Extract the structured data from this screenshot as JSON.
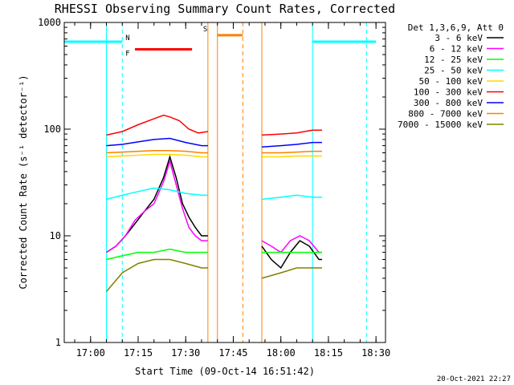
{
  "chart_data": {
    "type": "line",
    "title": "RHESSI Observing Summary Count Rates, Corrected",
    "xlabel": "Start Time (09-Oct-14 16:51:42)",
    "ylabel": "Corrected Count Rate (s⁻¹ detector⁻¹)",
    "y_scale": "log",
    "ylim": [
      1,
      1000
    ],
    "y_ticks": [
      1,
      10,
      100,
      1000
    ],
    "y_tick_labels": [
      "1",
      "10",
      "100",
      "1000"
    ],
    "xlim": [
      "16:51:42",
      "18:33:00"
    ],
    "x_ticks": [
      "17:00",
      "17:15",
      "17:30",
      "17:45",
      "18:00",
      "18:15",
      "18:30"
    ],
    "legend_title": "Det 1,3,6,9, Att 0",
    "legend_position": "right",
    "footer_date": "20-Oct-2021 22:27",
    "series": [
      {
        "name": "3 - 6 keV",
        "color": "#000000",
        "segments": [
          {
            "x": [
              "17:05",
              "17:08",
              "17:11",
              "17:14",
              "17:17",
              "17:20",
              "17:23",
              "17:25",
              "17:27",
              "17:29",
              "17:31",
              "17:33",
              "17:35",
              "17:36",
              "17:37"
            ],
            "y": [
              7,
              8,
              10,
              13,
              17,
              22,
              35,
              55,
              35,
              20,
              15,
              12,
              10,
              10,
              10
            ]
          },
          {
            "x": [
              "17:54",
              "17:57",
              "18:00",
              "18:03",
              "18:06",
              "18:09",
              "18:12",
              "18:13"
            ],
            "y": [
              8,
              6,
              5,
              7,
              9,
              8,
              6,
              6
            ]
          }
        ]
      },
      {
        "name": "6 - 12 keV",
        "color": "#ff00ff",
        "segments": [
          {
            "x": [
              "17:05",
              "17:08",
              "17:11",
              "17:14",
              "17:17",
              "17:20",
              "17:23",
              "17:25",
              "17:27",
              "17:29",
              "17:31",
              "17:33",
              "17:35",
              "17:36",
              "17:37"
            ],
            "y": [
              7,
              8,
              10,
              14,
              17,
              20,
              32,
              50,
              30,
              18,
              12,
              10,
              9,
              9,
              9
            ]
          },
          {
            "x": [
              "17:54",
              "17:57",
              "18:00",
              "18:03",
              "18:06",
              "18:09",
              "18:12",
              "18:13"
            ],
            "y": [
              9,
              8,
              7,
              9,
              10,
              9,
              7,
              7
            ]
          }
        ]
      },
      {
        "name": "12 - 25 keV",
        "color": "#00ff00",
        "segments": [
          {
            "x": [
              "17:05",
              "17:10",
              "17:15",
              "17:20",
              "17:25",
              "17:30",
              "17:35",
              "17:37"
            ],
            "y": [
              6,
              6.5,
              7,
              7,
              7.5,
              7,
              7,
              7
            ]
          },
          {
            "x": [
              "17:54",
              "18:00",
              "18:05",
              "18:10",
              "18:13"
            ],
            "y": [
              7,
              7,
              7,
              7,
              7
            ]
          }
        ]
      },
      {
        "name": "25 - 50 keV",
        "color": "#00ffff",
        "segments": [
          {
            "x": [
              "17:05",
              "17:10",
              "17:15",
              "17:20",
              "17:25",
              "17:30",
              "17:35",
              "17:37"
            ],
            "y": [
              22,
              24,
              26,
              28,
              27,
              25,
              24,
              24
            ]
          },
          {
            "x": [
              "17:54",
              "18:00",
              "18:05",
              "18:10",
              "18:13"
            ],
            "y": [
              22,
              23,
              24,
              23,
              23
            ]
          }
        ]
      },
      {
        "name": "50 - 100 keV",
        "color": "#ffd700",
        "segments": [
          {
            "x": [
              "17:05",
              "17:10",
              "17:15",
              "17:20",
              "17:25",
              "17:30",
              "17:35",
              "17:37"
            ],
            "y": [
              55,
              56,
              57,
              58,
              58,
              57,
              55,
              55
            ]
          },
          {
            "x": [
              "17:54",
              "18:00",
              "18:05",
              "18:10",
              "18:13"
            ],
            "y": [
              55,
              55,
              56,
              56,
              56
            ]
          }
        ]
      },
      {
        "name": "100 - 300 keV",
        "color": "#ff0000",
        "segments": [
          {
            "x": [
              "17:05",
              "17:10",
              "17:15",
              "17:20",
              "17:23",
              "17:25",
              "17:28",
              "17:31",
              "17:34",
              "17:37"
            ],
            "y": [
              88,
              95,
              110,
              125,
              135,
              130,
              120,
              100,
              92,
              95
            ]
          },
          {
            "x": [
              "17:54",
              "18:00",
              "18:05",
              "18:10",
              "18:13"
            ],
            "y": [
              88,
              90,
              92,
              98,
              98
            ]
          }
        ]
      },
      {
        "name": "300 - 800 keV",
        "color": "#0000ff",
        "segments": [
          {
            "x": [
              "17:05",
              "17:10",
              "17:15",
              "17:20",
              "17:25",
              "17:30",
              "17:35",
              "17:37"
            ],
            "y": [
              70,
              72,
              76,
              80,
              82,
              75,
              70,
              70
            ]
          },
          {
            "x": [
              "17:54",
              "18:00",
              "18:05",
              "18:10",
              "18:13"
            ],
            "y": [
              68,
              70,
              72,
              75,
              75
            ]
          }
        ]
      },
      {
        "name": "800 - 7000 keV",
        "color": "#ff8000",
        "segments": [
          {
            "x": [
              "17:05",
              "17:10",
              "17:15",
              "17:20",
              "17:25",
              "17:30",
              "17:35",
              "17:37"
            ],
            "y": [
              60,
              61,
              62,
              63,
              63,
              62,
              60,
              60
            ]
          },
          {
            "x": [
              "17:54",
              "18:00",
              "18:05",
              "18:10",
              "18:13"
            ],
            "y": [
              60,
              60,
              61,
              62,
              62
            ]
          }
        ]
      },
      {
        "name": "7000 - 15000 keV",
        "color": "#808000",
        "segments": [
          {
            "x": [
              "17:05",
              "17:10",
              "17:15",
              "17:20",
              "17:25",
              "17:30",
              "17:35",
              "17:37"
            ],
            "y": [
              3,
              4.5,
              5.5,
              6,
              6,
              5.5,
              5,
              5
            ]
          },
          {
            "x": [
              "17:54",
              "18:00",
              "18:05",
              "18:10",
              "18:13"
            ],
            "y": [
              4,
              4.5,
              5,
              5,
              5
            ]
          }
        ]
      }
    ],
    "annotations": [
      {
        "text": "N",
        "color": "#00ffff",
        "x": "17:10"
      },
      {
        "text": "F",
        "color": "#ff0000",
        "x": "17:10"
      },
      {
        "text": "S",
        "color": "#ff8000",
        "x": "17:37"
      }
    ],
    "state_bars": [
      {
        "label": "N",
        "color": "#00ffff",
        "y": 660,
        "segments": [
          [
            "16:51:42",
            "17:10"
          ],
          [
            "18:10",
            "18:30"
          ]
        ]
      },
      {
        "label": "F",
        "color": "#ff0000",
        "y": 560,
        "segments": [
          [
            "17:14",
            "17:32"
          ]
        ]
      },
      {
        "label": "S",
        "color": "#ff8000",
        "y": 760,
        "segments": [
          [
            "17:40",
            "17:48"
          ]
        ]
      }
    ],
    "vertical_lines": [
      {
        "x": "16:51:42",
        "color": "#00ffff",
        "style": "solid"
      },
      {
        "x": "17:05",
        "color": "#00ffff",
        "style": "solid"
      },
      {
        "x": "17:10",
        "color": "#00ffff",
        "style": "dashed"
      },
      {
        "x": "17:37",
        "color": "#ff8000",
        "style": "solid"
      },
      {
        "x": "17:40",
        "color": "#ff8000",
        "style": "solid"
      },
      {
        "x": "17:48",
        "color": "#ff8000",
        "style": "dashed"
      },
      {
        "x": "17:54",
        "color": "#ff8000",
        "style": "solid"
      },
      {
        "x": "18:10",
        "color": "#00ffff",
        "style": "solid"
      },
      {
        "x": "18:27",
        "color": "#00ffff",
        "style": "dashed"
      }
    ]
  }
}
